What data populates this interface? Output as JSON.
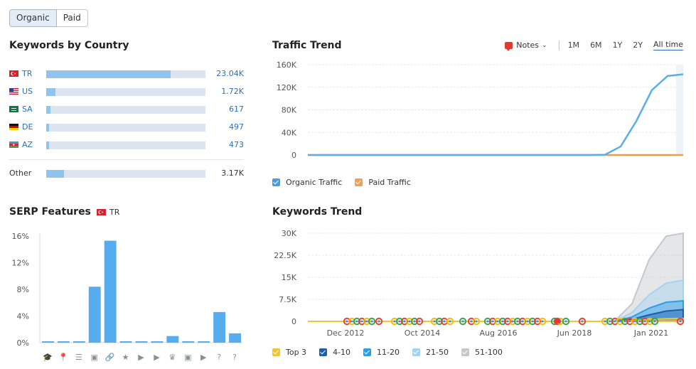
{
  "tabs": {
    "organic": "Organic",
    "paid": "Paid"
  },
  "keywords_by_country": {
    "title": "Keywords by Country",
    "rows": [
      {
        "code": "TR",
        "value": "23.04K",
        "share": 0.78,
        "flag": "turkey-flag"
      },
      {
        "code": "US",
        "value": "1.72K",
        "share": 0.06,
        "flag": "us-flag"
      },
      {
        "code": "SA",
        "value": "617",
        "share": 0.025,
        "flag": "saudi-flag"
      },
      {
        "code": "DE",
        "value": "497",
        "share": 0.02,
        "flag": "germany-flag"
      },
      {
        "code": "AZ",
        "value": "473",
        "share": 0.02,
        "flag": "azerbaijan-flag"
      }
    ],
    "other": {
      "label": "Other",
      "value": "3.17K",
      "share": 0.11
    }
  },
  "serp": {
    "title": "SERP Features",
    "country": "TR",
    "chart_data": {
      "type": "bar",
      "ylim": [
        0,
        16
      ],
      "yticks": [
        "16%",
        "12%",
        "8%",
        "4%",
        "0%"
      ],
      "categories": [
        "knowledge-panel",
        "local-pack",
        "reviews",
        "image-pack",
        "sitelinks",
        "featured-snippet",
        "video",
        "video-carousel",
        "top-stories",
        "thumbnails",
        "video-alt",
        "people-also-ask",
        "faq"
      ],
      "values": [
        0.2,
        0.2,
        0.2,
        8.4,
        15.3,
        0.2,
        0.2,
        0.2,
        1.0,
        0.2,
        0.2,
        4.6,
        1.4
      ],
      "color": "#55adf0"
    }
  },
  "traffic_trend": {
    "title": "Traffic Trend",
    "notes_label": "Notes",
    "ranges": [
      "1M",
      "6M",
      "1Y",
      "2Y",
      "All time"
    ],
    "active_range": "All time",
    "chart_data": {
      "type": "line",
      "ylim": [
        0,
        160000
      ],
      "yticks": [
        "160K",
        "120K",
        "80K",
        "40K",
        "0"
      ],
      "series": [
        {
          "name": "Organic Traffic",
          "color": "#5aade8",
          "values": [
            0,
            0,
            0,
            0,
            0,
            0,
            0,
            0,
            0,
            0,
            0,
            0,
            0,
            0,
            0,
            0,
            0,
            0,
            0,
            500,
            15000,
            60000,
            115000,
            140000,
            143000
          ]
        },
        {
          "name": "Paid Traffic",
          "color": "#f09a4b",
          "values": [
            0,
            0,
            0,
            0,
            0,
            0,
            0,
            0,
            0,
            0,
            0,
            0,
            0,
            0,
            0,
            0,
            0,
            0,
            0,
            0,
            0,
            0,
            0,
            0,
            0
          ]
        }
      ]
    },
    "legend": [
      {
        "label": "Organic Traffic",
        "color": "#4a9ee0"
      },
      {
        "label": "Paid Traffic",
        "color": "#f0a054"
      }
    ]
  },
  "keywords_trend": {
    "title": "Keywords Trend",
    "chart_data": {
      "type": "area",
      "ylim": [
        0,
        30000
      ],
      "yticks": [
        "30K",
        "22.5K",
        "15K",
        "7.5K",
        "0"
      ],
      "xticks": [
        "Dec 2012",
        "Oct 2014",
        "Aug 2016",
        "Jun 2018",
        "Jan 2021"
      ],
      "series": [
        {
          "name": "51-100",
          "color": "#c4c7cb",
          "values": [
            0,
            0,
            0,
            0,
            0,
            0,
            0,
            0,
            0,
            0,
            0,
            0,
            0,
            0,
            0,
            0,
            0,
            0,
            200,
            6000,
            21000,
            29000,
            30000
          ]
        },
        {
          "name": "21-50",
          "color": "#a6d2f2",
          "values": [
            0,
            0,
            0,
            0,
            0,
            0,
            0,
            0,
            0,
            0,
            0,
            0,
            0,
            0,
            0,
            0,
            0,
            0,
            100,
            3000,
            9000,
            13000,
            14000
          ]
        },
        {
          "name": "11-20",
          "color": "#2a9ee8",
          "values": [
            0,
            0,
            0,
            0,
            0,
            0,
            0,
            0,
            0,
            0,
            0,
            0,
            0,
            0,
            0,
            0,
            0,
            0,
            0,
            1500,
            4500,
            6500,
            7000
          ]
        },
        {
          "name": "4-10",
          "color": "#1a5fae",
          "values": [
            0,
            0,
            0,
            0,
            0,
            0,
            0,
            0,
            0,
            0,
            0,
            0,
            0,
            0,
            0,
            0,
            0,
            0,
            0,
            700,
            2200,
            3500,
            4000
          ]
        },
        {
          "name": "Top 3",
          "color": "#f2c439",
          "values": [
            0,
            0,
            0,
            0,
            0,
            0,
            0,
            0,
            0,
            0,
            0,
            0,
            0,
            0,
            0,
            0,
            0,
            0,
            0,
            200,
            600,
            900,
            1000
          ]
        }
      ]
    },
    "legend": [
      {
        "label": "Top 3",
        "color": "#f2c439"
      },
      {
        "label": "4-10",
        "color": "#1a5fae"
      },
      {
        "label": "11-20",
        "color": "#2a9ee8"
      },
      {
        "label": "21-50",
        "color": "#a6d2f2"
      },
      {
        "label": "51-100",
        "color": "#c4c7cb"
      }
    ]
  }
}
